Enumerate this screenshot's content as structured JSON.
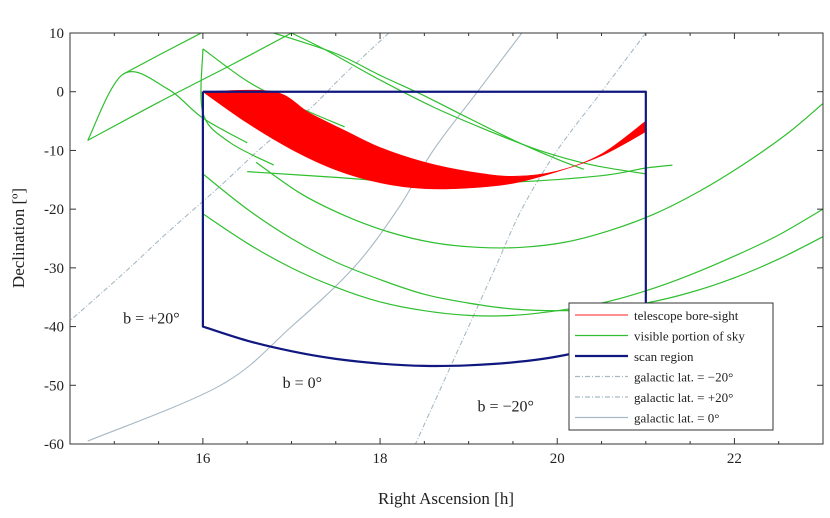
{
  "chart_data": {
    "type": "line",
    "xlabel": "Right Ascension [h]",
    "ylabel": "Declination [º]",
    "xlim": [
      14.5,
      23.0
    ],
    "ylim": [
      -60,
      10
    ],
    "xticks": [
      16,
      18,
      20,
      22
    ],
    "yticks": [
      10,
      0,
      -10,
      -20,
      -30,
      -40,
      -50,
      -60
    ],
    "xtick_labels": [
      "16",
      "18",
      "20",
      "22"
    ],
    "ytick_labels": [
      "10",
      "0",
      "-10",
      "-20",
      "-30",
      "-40",
      "-50",
      "-60"
    ],
    "grid": false,
    "legend_position": "bottom-right",
    "legend": [
      {
        "label": "telescope bore-sight",
        "color": "#ff4b4b",
        "style": "solid"
      },
      {
        "label": "visible portion of sky",
        "color": "#2fbf2f",
        "style": "solid"
      },
      {
        "label": "scan region",
        "color": "#101880",
        "style": "solid-thick"
      },
      {
        "label": "galactic lat. = −20°",
        "color": "#a7b9c4",
        "style": "dashdot"
      },
      {
        "label": "galactic lat. = +20°",
        "color": "#a7b9c4",
        "style": "dashdot"
      },
      {
        "label": "galactic lat. = 0°",
        "color": "#a7b9c4",
        "style": "solid"
      }
    ],
    "annotations": [
      {
        "text": "b = +20°",
        "x": 15.1,
        "y": -39.5
      },
      {
        "text": "b = 0°",
        "x": 16.9,
        "y": -50.5
      },
      {
        "text": "b = −20°",
        "x": 19.1,
        "y": -54.5
      }
    ],
    "series": [
      {
        "name": "scan region",
        "color": "#101880",
        "kind": "path",
        "points": [
          [
            16.0,
            0
          ],
          [
            21.0,
            0
          ],
          [
            21.0,
            -40
          ],
          [
            20.5,
            -43.3
          ],
          [
            20.0,
            -45.1
          ],
          [
            19.5,
            -46.1
          ],
          [
            19.0,
            -46.6
          ],
          [
            18.5,
            -46.7
          ],
          [
            18.0,
            -46.3
          ],
          [
            17.5,
            -45.5
          ],
          [
            17.0,
            -44.2
          ],
          [
            16.5,
            -42.4
          ],
          [
            16.0,
            -40.0
          ],
          [
            16.0,
            0
          ]
        ]
      },
      {
        "name": "telescope bore-sight",
        "color": "#ff0000",
        "kind": "band",
        "upper": [
          [
            16.0,
            0
          ],
          [
            16.8,
            0
          ],
          [
            17.2,
            -3.6
          ],
          [
            17.6,
            -6.6
          ],
          [
            18.0,
            -9.5
          ],
          [
            18.5,
            -12.0
          ],
          [
            19.0,
            -13.6
          ],
          [
            19.5,
            -14.4
          ],
          [
            20.0,
            -13.5
          ],
          [
            20.5,
            -10.6
          ],
          [
            21.0,
            -5.0
          ]
        ],
        "lower": [
          [
            16.0,
            0
          ],
          [
            16.5,
            -5.3
          ],
          [
            17.0,
            -9.8
          ],
          [
            17.5,
            -13.3
          ],
          [
            18.0,
            -15.5
          ],
          [
            18.5,
            -16.5
          ],
          [
            19.0,
            -16.4
          ],
          [
            19.5,
            -15.6
          ],
          [
            20.0,
            -13.6
          ],
          [
            20.5,
            -10.9
          ],
          [
            21.0,
            -6.8
          ]
        ]
      },
      {
        "name": "visible portion of sky",
        "color": "#2fbf2f",
        "kind": "lines",
        "lines": [
          [
            [
              14.7,
              -8.3
            ],
            [
              15.5,
              -1.8
            ],
            [
              16.3,
              4.4
            ],
            [
              17.0,
              10.0
            ]
          ],
          [
            [
              14.7,
              -8.3
            ],
            [
              15.1,
              3.0
            ],
            [
              15.6,
              0.5
            ],
            [
              16.0,
              -4.5
            ],
            [
              16.5,
              -8.7
            ]
          ],
          [
            [
              15.1,
              3.0
            ],
            [
              15.6,
              7.0
            ],
            [
              16.3,
              12.5
            ]
          ],
          [
            [
              16.0,
              7.3
            ],
            [
              16.0,
              -3.6
            ],
            [
              16.3,
              -8.6
            ],
            [
              16.8,
              -12.5
            ]
          ],
          [
            [
              16.0,
              7.3
            ],
            [
              16.5,
              1.8
            ],
            [
              17.0,
              -2.1
            ],
            [
              17.6,
              -6.0
            ]
          ],
          [
            [
              16.8,
              10.0
            ],
            [
              17.5,
              6.5
            ],
            [
              18.0,
              2.8
            ],
            [
              18.5,
              -0.7
            ],
            [
              19.0,
              -4.5
            ],
            [
              19.5,
              -8.2
            ],
            [
              20.0,
              -11.5
            ],
            [
              20.3,
              -13.2
            ]
          ],
          [
            [
              17.0,
              10.0
            ],
            [
              17.4,
              7.0
            ],
            [
              18.0,
              2.0
            ],
            [
              18.6,
              -2.6
            ],
            [
              19.2,
              -6.5
            ],
            [
              19.8,
              -10.0
            ],
            [
              20.4,
              -12.5
            ],
            [
              21.0,
              -14.0
            ]
          ],
          [
            [
              16.6,
              -12.0
            ],
            [
              17.1,
              -17.3
            ],
            [
              17.6,
              -21.1
            ],
            [
              18.1,
              -23.9
            ],
            [
              18.6,
              -25.7
            ],
            [
              19.1,
              -26.5
            ],
            [
              19.6,
              -26.5
            ],
            [
              20.1,
              -25.6
            ],
            [
              20.6,
              -23.6
            ],
            [
              21.1,
              -20.8
            ],
            [
              21.6,
              -17.0
            ],
            [
              22.1,
              -12.4
            ],
            [
              22.6,
              -7.1
            ],
            [
              23.0,
              -2.0
            ]
          ],
          [
            [
              16.0,
              -14.0
            ],
            [
              16.5,
              -20.0
            ],
            [
              17.0,
              -25.0
            ],
            [
              17.5,
              -29.0
            ],
            [
              18.0,
              -32.0
            ],
            [
              18.5,
              -34.5
            ],
            [
              19.0,
              -36.0
            ],
            [
              19.5,
              -37.0
            ],
            [
              20.0,
              -37.3
            ],
            [
              20.5,
              -37.0
            ],
            [
              21.0,
              -36.0
            ],
            [
              21.5,
              -34.2
            ],
            [
              22.0,
              -31.7
            ],
            [
              22.5,
              -28.5
            ],
            [
              23.0,
              -24.7
            ]
          ],
          [
            [
              16.0,
              -20.8
            ],
            [
              16.5,
              -25.8
            ],
            [
              17.0,
              -30.0
            ],
            [
              17.5,
              -33.3
            ],
            [
              18.0,
              -35.8
            ],
            [
              18.5,
              -37.3
            ],
            [
              19.0,
              -38.1
            ],
            [
              19.5,
              -38.1
            ],
            [
              20.0,
              -37.3
            ],
            [
              20.5,
              -36.0
            ],
            [
              21.0,
              -33.9
            ],
            [
              21.5,
              -31.2
            ],
            [
              22.0,
              -28.0
            ],
            [
              22.5,
              -24.4
            ],
            [
              23.0,
              -20.0
            ]
          ],
          [
            [
              16.5,
              -13.6
            ],
            [
              17.5,
              -14.6
            ],
            [
              18.5,
              -15.6
            ],
            [
              19.5,
              -15.4
            ],
            [
              20.5,
              -14.3
            ],
            [
              21.0,
              -13.0
            ],
            [
              21.3,
              -12.5
            ]
          ]
        ]
      },
      {
        "name": "galactic lat. = −20°",
        "color": "#a7b9c4",
        "kind": "dashdot",
        "points": [
          [
            21.0,
            10.0
          ],
          [
            20.5,
            0.0
          ],
          [
            20.0,
            -10.0
          ],
          [
            19.6,
            -20.0
          ],
          [
            19.3,
            -30.0
          ],
          [
            19.0,
            -40.0
          ],
          [
            18.7,
            -50.0
          ],
          [
            18.4,
            -60.0
          ]
        ]
      },
      {
        "name": "galactic lat. = +20°",
        "color": "#a7b9c4",
        "kind": "dashdot",
        "points": [
          [
            18.1,
            10.0
          ],
          [
            17.6,
            3.0
          ],
          [
            17.2,
            -3.0
          ],
          [
            16.7,
            -9.0
          ],
          [
            16.2,
            -16.0
          ],
          [
            15.6,
            -24.0
          ],
          [
            15.1,
            -31.0
          ],
          [
            14.5,
            -39.0
          ]
        ]
      },
      {
        "name": "galactic lat. = 0°",
        "color": "#a7b9c4",
        "kind": "solid",
        "points": [
          [
            19.6,
            10.0
          ],
          [
            19.1,
            0.0
          ],
          [
            18.6,
            -10.0
          ],
          [
            18.2,
            -20.0
          ],
          [
            17.7,
            -30.0
          ],
          [
            17.0,
            -40.0
          ],
          [
            16.2,
            -50.0
          ],
          [
            14.7,
            -59.5
          ]
        ]
      }
    ]
  }
}
